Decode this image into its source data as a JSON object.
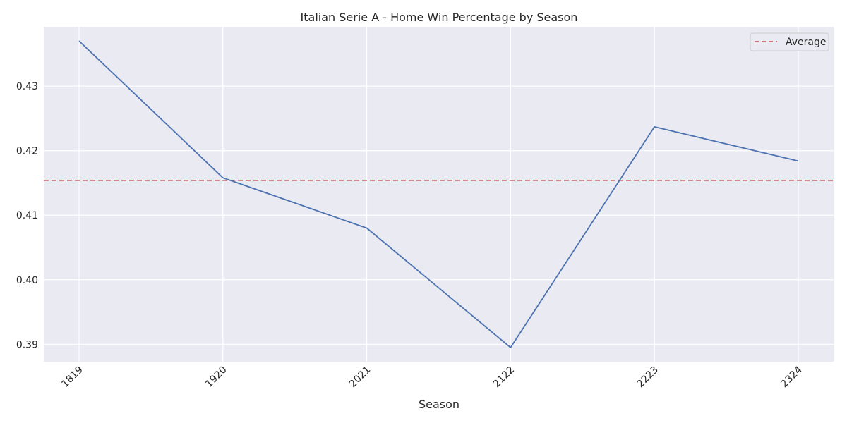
{
  "chart_data": {
    "type": "line",
    "title": "Italian Serie A - Home Win Percentage by Season",
    "xlabel": "Season",
    "ylabel": "",
    "categories": [
      "1819",
      "1920",
      "2021",
      "2122",
      "2223",
      "2324"
    ],
    "series": [
      {
        "values": [
          0.437,
          0.4158,
          0.408,
          0.3895,
          0.4237,
          0.4184
        ],
        "color": "#4c72b0"
      }
    ],
    "reference_line": {
      "name": "Average",
      "value": 0.4154,
      "color": "#c44e52",
      "style": "dashed"
    },
    "ylim": [
      0.3873,
      0.4392
    ],
    "yticks": [
      0.39,
      0.4,
      0.41,
      0.42,
      0.43
    ],
    "ytick_labels": [
      "0.39",
      "0.40",
      "0.41",
      "0.42",
      "0.43"
    ],
    "grid": true,
    "legend_position": "top-right",
    "background_color": "#eaeaf2",
    "grid_color": "#ffffff"
  }
}
